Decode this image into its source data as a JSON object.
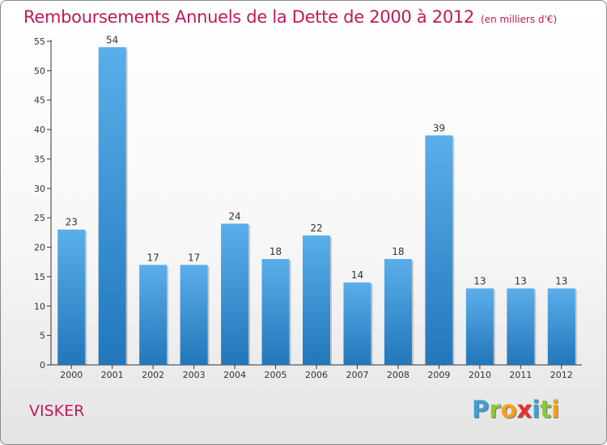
{
  "title": "Remboursements Annuels de la Dette de 2000 à 2012",
  "subtitle": "(en milliers d'€)",
  "place": "VISKER",
  "logo": {
    "text": "Proxiti",
    "letters": [
      {
        "ch": "P",
        "color": "#3aa0d8"
      },
      {
        "ch": "r",
        "color": "#8cc63f"
      },
      {
        "ch": "o",
        "color": "#f7a21b"
      },
      {
        "ch": "x",
        "color": "#e8312f"
      },
      {
        "ch": "i",
        "color": "#3aa0d8"
      },
      {
        "ch": "t",
        "color": "#8cc63f"
      },
      {
        "ch": "i",
        "color": "#f7a21b"
      }
    ]
  },
  "colors": {
    "title": "#c0185a",
    "bar_top": "#5aaeea",
    "bar_bottom": "#2277bb"
  },
  "chart_data": {
    "type": "bar",
    "categories": [
      "2000",
      "2001",
      "2002",
      "2003",
      "2004",
      "2005",
      "2006",
      "2007",
      "2008",
      "2009",
      "2010",
      "2011",
      "2012"
    ],
    "values": [
      23,
      54,
      17,
      17,
      24,
      18,
      22,
      14,
      18,
      39,
      13,
      13,
      13
    ],
    "ylim": [
      0,
      55
    ],
    "yticks": [
      0,
      5,
      10,
      15,
      20,
      25,
      30,
      35,
      40,
      45,
      50,
      55
    ],
    "grid": false,
    "data_labels": true
  }
}
